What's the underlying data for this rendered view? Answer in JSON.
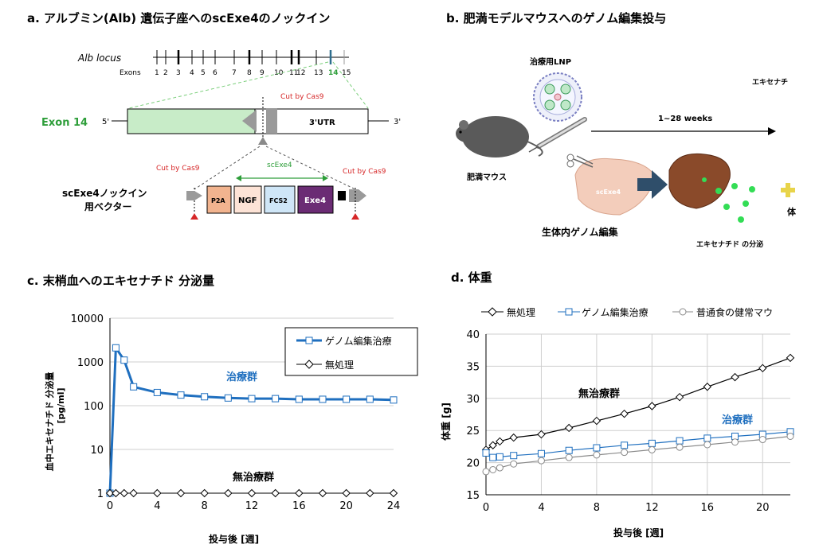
{
  "panel_a": {
    "title": "a. アルブミン(Alb) 遺伝子座へのscExe4のノックイン",
    "locus_label": "Alb locus",
    "exons_label": "Exons",
    "exon_numbers": [
      "1",
      "2",
      "3",
      "4",
      "5",
      "6",
      "7",
      "8",
      "9",
      "10",
      "11",
      "12",
      "13",
      "14",
      "15"
    ],
    "exon14_label": "Exon 14",
    "five_prime": "5'",
    "three_prime": "3'",
    "utr": "3'UTR",
    "cut_top": "Cut by Cas9",
    "cut_left": "Cut by Cas9",
    "cut_right": "Cut by Cas9",
    "scexe4_label": "scExe4",
    "vector_label_line1": "scExe4ノックイン",
    "vector_label_line2": "用ベクター",
    "cassette": [
      "P2A",
      "NGF",
      "FCS2",
      "Exe4"
    ]
  },
  "panel_b": {
    "title": "b. 肥満モデルマウスへのゲノム編集投与",
    "lnp_label": "治療用LNP",
    "weeks": "1~28 weeks",
    "mouse_label": "肥満マウス",
    "liver_tag": "scExe4",
    "editing_label": "生体内ゲノム編集",
    "secretion_label": "エキセナチド の分泌",
    "right_top_label": "エキセナチ",
    "right_mid_label": "体"
  },
  "panel_c": {
    "title": "c. 末梢血へのエキセナチド 分泌量",
    "ylabel_line1": "血中エキセナチド 分泌量",
    "ylabel_line2": "[pg/ml]",
    "xlabel": "投与後 [週]",
    "treated_label": "治療群",
    "untreated_label": "無治療群",
    "legend": [
      "ゲノム編集治療",
      "無処理"
    ]
  },
  "panel_d": {
    "title": "d. 体重",
    "ylabel": "体重 [g]",
    "xlabel": "投与後 [週]",
    "untreated_label": "無治療群",
    "treated_label": "治療群",
    "legend": [
      "無処理",
      "ゲノム編集治療",
      "普通食の健常マウ"
    ]
  },
  "colors": {
    "blue": "#1f6fbf",
    "black": "#000000",
    "gray": "#8a8a8a",
    "green": "#2e9e3a",
    "red": "#d62728"
  },
  "chart_data": [
    {
      "type": "line",
      "title": "c. 末梢血へのエキセナチド 分泌量",
      "xlabel": "投与後 [週]",
      "ylabel": "血中エキセナチド 分泌量 [pg/ml]",
      "yscale": "log",
      "xlim": [
        0,
        24
      ],
      "ylim": [
        1,
        10000
      ],
      "xticks": [
        0,
        4,
        8,
        12,
        16,
        20,
        24
      ],
      "yticks": [
        1,
        10,
        100,
        1000,
        10000
      ],
      "series": [
        {
          "name": "ゲノム編集治療",
          "color": "#1f6fbf",
          "x": [
            0,
            0.5,
            1.2,
            2,
            4,
            6,
            8,
            10,
            12,
            14,
            16,
            18,
            20,
            22,
            24
          ],
          "y": [
            1,
            2100,
            1100,
            270,
            200,
            175,
            160,
            150,
            145,
            145,
            140,
            140,
            140,
            140,
            135
          ]
        },
        {
          "name": "無処理",
          "color": "#000000",
          "x": [
            0,
            0.5,
            1.2,
            2,
            4,
            6,
            8,
            10,
            12,
            14,
            16,
            18,
            20,
            22,
            24
          ],
          "y": [
            1,
            1,
            1,
            1,
            1,
            1,
            1,
            1,
            1,
            1,
            1,
            1,
            1,
            1,
            1
          ]
        }
      ]
    },
    {
      "type": "line",
      "title": "d. 体重",
      "xlabel": "投与後 [週]",
      "ylabel": "体重 [g]",
      "xlim": [
        0,
        22
      ],
      "ylim": [
        15,
        40
      ],
      "xticks": [
        0,
        4,
        8,
        12,
        16,
        20
      ],
      "yticks": [
        15,
        20,
        25,
        30,
        35,
        40
      ],
      "series": [
        {
          "name": "無処理",
          "color": "#000000",
          "x": [
            0,
            0.5,
            1,
            2,
            4,
            6,
            8,
            10,
            12,
            14,
            16,
            18,
            20,
            22
          ],
          "y": [
            22,
            22.7,
            23.3,
            23.9,
            24.4,
            25.4,
            26.5,
            27.6,
            28.8,
            30.2,
            31.8,
            33.3,
            34.7,
            36.3
          ]
        },
        {
          "name": "ゲノム編集治療",
          "color": "#1f6fbf",
          "x": [
            0,
            0.5,
            1,
            2,
            4,
            6,
            8,
            10,
            12,
            14,
            16,
            18,
            20,
            22
          ],
          "y": [
            21.5,
            20.8,
            20.9,
            21.1,
            21.4,
            21.9,
            22.3,
            22.7,
            23.0,
            23.4,
            23.8,
            24.1,
            24.4,
            24.8
          ]
        },
        {
          "name": "普通食の健常マウ",
          "color": "#8a8a8a",
          "x": [
            0,
            0.5,
            1,
            2,
            4,
            6,
            8,
            10,
            12,
            14,
            16,
            18,
            20,
            22
          ],
          "y": [
            18.6,
            18.9,
            19.2,
            19.8,
            20.3,
            20.8,
            21.2,
            21.6,
            22.0,
            22.4,
            22.8,
            23.2,
            23.6,
            24.1
          ]
        }
      ]
    }
  ]
}
